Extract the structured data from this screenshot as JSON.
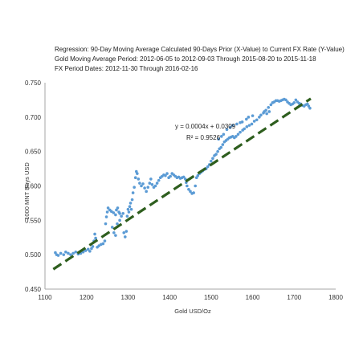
{
  "chart_data": {
    "type": "scatter",
    "title_lines": [
      "Regression: 90-Day Moving Average Calculated 90-Days Prior (X-Value) to Current FX Rate (Y-Value)",
      "Gold Moving Average Period: 2012-06-05 to 2012-09-03 Through 2015-08-20 to 2015-11-18",
      "FX Period Dates: 2012-11-30 Through 2016-02-16"
    ],
    "xlabel": "Gold USD/Oz",
    "ylabel": "1000 MNT Buys USD",
    "xlim": [
      1100,
      1800
    ],
    "ylim": [
      0.45,
      0.75
    ],
    "x_ticks": [
      "1100",
      "1200",
      "1300",
      "1400",
      "1500",
      "1600",
      "1700",
      "1800"
    ],
    "y_ticks": [
      "0.450",
      "0.500",
      "0.550",
      "0.600",
      "0.650",
      "0.700",
      "0.750"
    ],
    "grid": false,
    "colors": {
      "points": "#5b9bd5",
      "trendline": "#2e5e1e"
    },
    "trendline": {
      "equation": "y = 0.0004x + 0.0309",
      "r2": "R² = 0.9526",
      "slope": 0.0004,
      "intercept": 0.0309,
      "style": "dashed"
    },
    "series": [
      {
        "values": [
          [
            1125,
            0.503
          ],
          [
            1128,
            0.5
          ],
          [
            1132,
            0.499
          ],
          [
            1138,
            0.502
          ],
          [
            1145,
            0.5
          ],
          [
            1150,
            0.504
          ],
          [
            1156,
            0.502
          ],
          [
            1162,
            0.5
          ],
          [
            1168,
            0.502
          ],
          [
            1174,
            0.504
          ],
          [
            1180,
            0.501
          ],
          [
            1186,
            0.502
          ],
          [
            1192,
            0.504
          ],
          [
            1198,
            0.506
          ],
          [
            1204,
            0.508
          ],
          [
            1208,
            0.505
          ],
          [
            1212,
            0.509
          ],
          [
            1215,
            0.512
          ],
          [
            1218,
            0.52
          ],
          [
            1220,
            0.53
          ],
          [
            1222,
            0.524
          ],
          [
            1226,
            0.511
          ],
          [
            1230,
            0.513
          ],
          [
            1235,
            0.515
          ],
          [
            1240,
            0.516
          ],
          [
            1244,
            0.52
          ],
          [
            1246,
            0.545
          ],
          [
            1248,
            0.555
          ],
          [
            1250,
            0.562
          ],
          [
            1252,
            0.568
          ],
          [
            1256,
            0.565
          ],
          [
            1260,
            0.563
          ],
          [
            1265,
            0.561
          ],
          [
            1270,
            0.558
          ],
          [
            1272,
            0.565
          ],
          [
            1275,
            0.568
          ],
          [
            1278,
            0.562
          ],
          [
            1280,
            0.56
          ],
          [
            1284,
            0.556
          ],
          [
            1288,
            0.56
          ],
          [
            1262,
            0.54
          ],
          [
            1266,
            0.532
          ],
          [
            1270,
            0.528
          ],
          [
            1274,
            0.545
          ],
          [
            1280,
            0.55
          ],
          [
            1290,
            0.532
          ],
          [
            1293,
            0.526
          ],
          [
            1296,
            0.534
          ],
          [
            1298,
            0.556
          ],
          [
            1300,
            0.566
          ],
          [
            1302,
            0.562
          ],
          [
            1304,
            0.57
          ],
          [
            1306,
            0.575
          ],
          [
            1308,
            0.566
          ],
          [
            1310,
            0.58
          ],
          [
            1312,
            0.59
          ],
          [
            1315,
            0.598
          ],
          [
            1318,
            0.612
          ],
          [
            1320,
            0.621
          ],
          [
            1322,
            0.618
          ],
          [
            1325,
            0.61
          ],
          [
            1328,
            0.604
          ],
          [
            1332,
            0.6
          ],
          [
            1336,
            0.603
          ],
          [
            1340,
            0.597
          ],
          [
            1344,
            0.592
          ],
          [
            1348,
            0.598
          ],
          [
            1352,
            0.604
          ],
          [
            1355,
            0.61
          ],
          [
            1358,
            0.602
          ],
          [
            1362,
            0.598
          ],
          [
            1366,
            0.6
          ],
          [
            1370,
            0.604
          ],
          [
            1374,
            0.608
          ],
          [
            1378,
            0.612
          ],
          [
            1382,
            0.614
          ],
          [
            1386,
            0.616
          ],
          [
            1390,
            0.615
          ],
          [
            1394,
            0.618
          ],
          [
            1398,
            0.612
          ],
          [
            1402,
            0.614
          ],
          [
            1406,
            0.618
          ],
          [
            1410,
            0.616
          ],
          [
            1414,
            0.614
          ],
          [
            1418,
            0.612
          ],
          [
            1422,
            0.613
          ],
          [
            1426,
            0.611
          ],
          [
            1430,
            0.612
          ],
          [
            1434,
            0.613
          ],
          [
            1438,
            0.61
          ],
          [
            1440,
            0.605
          ],
          [
            1442,
            0.6
          ],
          [
            1446,
            0.595
          ],
          [
            1450,
            0.592
          ],
          [
            1454,
            0.589
          ],
          [
            1458,
            0.59
          ],
          [
            1462,
            0.6
          ],
          [
            1465,
            0.612
          ],
          [
            1468,
            0.615
          ],
          [
            1472,
            0.618
          ],
          [
            1476,
            0.62
          ],
          [
            1480,
            0.622
          ],
          [
            1484,
            0.624
          ],
          [
            1488,
            0.625
          ],
          [
            1492,
            0.628
          ],
          [
            1496,
            0.631
          ],
          [
            1500,
            0.636
          ],
          [
            1504,
            0.64
          ],
          [
            1508,
            0.644
          ],
          [
            1512,
            0.646
          ],
          [
            1516,
            0.65
          ],
          [
            1520,
            0.654
          ],
          [
            1524,
            0.656
          ],
          [
            1528,
            0.66
          ],
          [
            1532,
            0.664
          ],
          [
            1536,
            0.666
          ],
          [
            1540,
            0.668
          ],
          [
            1544,
            0.67
          ],
          [
            1548,
            0.671
          ],
          [
            1552,
            0.672
          ],
          [
            1556,
            0.67
          ],
          [
            1560,
            0.672
          ],
          [
            1565,
            0.675
          ],
          [
            1570,
            0.678
          ],
          [
            1576,
            0.681
          ],
          [
            1580,
            0.683
          ],
          [
            1586,
            0.686
          ],
          [
            1592,
            0.688
          ],
          [
            1598,
            0.69
          ],
          [
            1604,
            0.694
          ],
          [
            1610,
            0.696
          ],
          [
            1616,
            0.7
          ],
          [
            1620,
            0.703
          ],
          [
            1626,
            0.706
          ],
          [
            1632,
            0.71
          ],
          [
            1638,
            0.714
          ],
          [
            1644,
            0.718
          ],
          [
            1648,
            0.721
          ],
          [
            1652,
            0.722
          ],
          [
            1656,
            0.724
          ],
          [
            1660,
            0.724
          ],
          [
            1664,
            0.723
          ],
          [
            1668,
            0.724
          ],
          [
            1672,
            0.725
          ],
          [
            1676,
            0.726
          ],
          [
            1680,
            0.725
          ],
          [
            1684,
            0.722
          ],
          [
            1688,
            0.72
          ],
          [
            1692,
            0.718
          ],
          [
            1696,
            0.719
          ],
          [
            1700,
            0.721
          ],
          [
            1704,
            0.725
          ],
          [
            1708,
            0.722
          ],
          [
            1712,
            0.72
          ],
          [
            1716,
            0.719
          ],
          [
            1720,
            0.717
          ],
          [
            1724,
            0.716
          ],
          [
            1728,
            0.718
          ],
          [
            1732,
            0.719
          ],
          [
            1735,
            0.716
          ],
          [
            1738,
            0.713
          ],
          [
            1628,
            0.708
          ],
          [
            1634,
            0.705
          ],
          [
            1640,
            0.708
          ],
          [
            1600,
            0.702
          ],
          [
            1590,
            0.7
          ],
          [
            1585,
            0.697
          ],
          [
            1575,
            0.693
          ],
          [
            1570,
            0.692
          ],
          [
            1562,
            0.69
          ],
          [
            1552,
            0.688
          ],
          [
            1546,
            0.685
          ],
          [
            1538,
            0.682
          ],
          [
            1530,
            0.675
          ],
          [
            1525,
            0.672
          ],
          [
            1518,
            0.668
          ]
        ]
      }
    ]
  }
}
